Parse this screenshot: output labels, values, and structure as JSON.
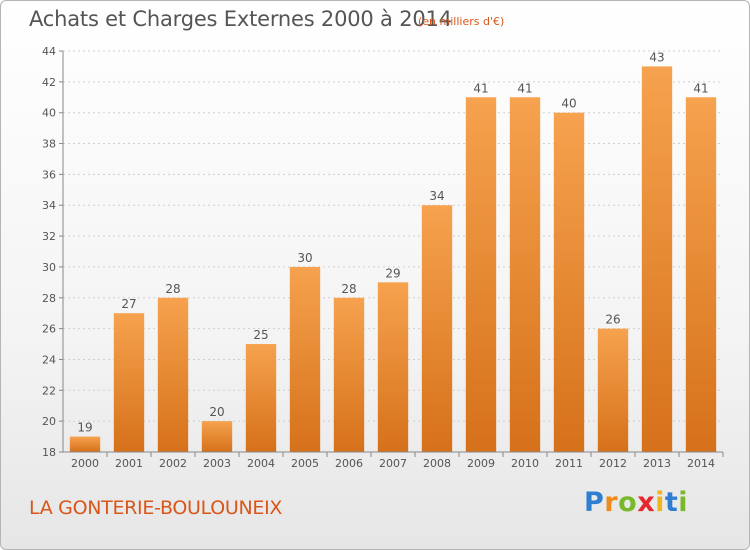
{
  "title": "Achats et Charges Externes 2000 à 2014",
  "subtitle": "(en milliers d'€)",
  "place": "LA GONTERIE-BOULOUNEIX",
  "logo": {
    "letters": [
      "P",
      "r",
      "o",
      "x",
      "i",
      "t",
      "i"
    ],
    "colors": [
      "#2f7fd1",
      "#ef8a1d",
      "#79b82a",
      "#e8262b",
      "#efb51d",
      "#2f7fd1",
      "#79b82a"
    ]
  },
  "chart_data": {
    "type": "bar",
    "title": "Achats et Charges Externes 2000 à 2014",
    "subtitle": "(en milliers d'€)",
    "xlabel": "",
    "ylabel": "",
    "categories": [
      "2000",
      "2001",
      "2002",
      "2003",
      "2004",
      "2005",
      "2006",
      "2007",
      "2008",
      "2009",
      "2010",
      "2011",
      "2012",
      "2013",
      "2014"
    ],
    "values": [
      19,
      27,
      28,
      20,
      25,
      30,
      28,
      29,
      34,
      41,
      41,
      40,
      26,
      43,
      41
    ],
    "ylim": [
      18,
      44
    ],
    "yticks": [
      18,
      20,
      22,
      24,
      26,
      28,
      30,
      32,
      34,
      36,
      38,
      40,
      42,
      44
    ],
    "grid": "horizontal",
    "bar_color": "#e8872a"
  }
}
